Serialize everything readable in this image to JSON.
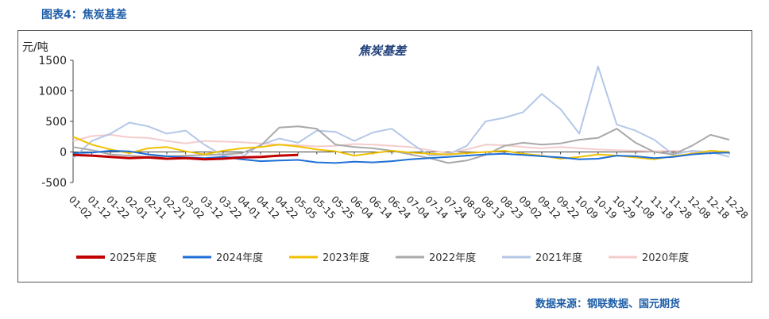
{
  "figure_title": "图表4：焦炭基差",
  "source": "数据来源：钢联数据、国元期货",
  "chart_data": {
    "type": "line",
    "title": "焦炭基差",
    "ylabel": "元/吨",
    "xlabel": "",
    "ylim": [
      -500,
      1500
    ],
    "yticks": [
      -500,
      0,
      500,
      1000,
      1500
    ],
    "x_tick_labels": [
      "01-02",
      "01-12",
      "01-22",
      "02-01",
      "02-11",
      "02-21",
      "03-02",
      "03-12",
      "03-22",
      "04-01",
      "04-12",
      "04-22",
      "05-05",
      "05-15",
      "05-25",
      "06-04",
      "06-14",
      "06-24",
      "07-04",
      "07-14",
      "07-24",
      "08-03",
      "08-13",
      "08-23",
      "09-02",
      "09-12",
      "09-22",
      "10-09",
      "10-19",
      "10-29",
      "11-08",
      "11-18",
      "11-28",
      "12-08",
      "12-18",
      "12-28"
    ],
    "grid": false,
    "legend_position": "bottom",
    "series": [
      {
        "name": "2025年度",
        "color": "#c00000",
        "values": [
          -50,
          -60,
          -80,
          -100,
          -90,
          -110,
          -100,
          -120,
          -110,
          -90,
          -80,
          -60,
          -50
        ]
      },
      {
        "name": "2024年度",
        "color": "#1f6fd6",
        "values": [
          -20,
          -10,
          20,
          10,
          -40,
          -70,
          -90,
          -100,
          -80,
          -120,
          -150,
          -140,
          -130,
          -170,
          -180,
          -160,
          -170,
          -150,
          -120,
          -100,
          -80,
          -60,
          -40,
          -30,
          -50,
          -70,
          -90,
          -120,
          -110,
          -60,
          -70,
          -100,
          -80,
          -40,
          -20,
          -10
        ]
      },
      {
        "name": "2023年度",
        "color": "#f0c000",
        "values": [
          250,
          120,
          40,
          -20,
          60,
          80,
          10,
          -40,
          20,
          60,
          80,
          120,
          90,
          40,
          10,
          -60,
          -20,
          20,
          -10,
          -30,
          -40,
          -20,
          0,
          20,
          -30,
          -60,
          -110,
          -80,
          -40,
          -60,
          -90,
          -120,
          -70,
          -30,
          20,
          0
        ]
      },
      {
        "name": "2022年度",
        "color": "#a9a9a9",
        "values": [
          80,
          30,
          -40,
          -60,
          -80,
          -70,
          -60,
          -50,
          -40,
          -20,
          100,
          400,
          420,
          380,
          120,
          80,
          60,
          20,
          -40,
          -100,
          -180,
          -140,
          -50,
          100,
          150,
          120,
          140,
          200,
          230,
          380,
          150,
          0,
          -40,
          100,
          280,
          200
        ]
      },
      {
        "name": "2021年度",
        "color": "#b4c7e7",
        "values": [
          -100,
          180,
          300,
          480,
          420,
          300,
          350,
          120,
          -60,
          -80,
          120,
          220,
          150,
          350,
          330,
          180,
          320,
          380,
          150,
          -60,
          -40,
          100,
          500,
          560,
          650,
          950,
          700,
          300,
          1400,
          450,
          350,
          200,
          -40,
          20,
          0,
          -80
        ]
      },
      {
        "name": "2020年度",
        "color": "#f4cccc",
        "values": [
          180,
          260,
          280,
          240,
          230,
          180,
          140,
          180,
          170,
          160,
          140,
          120,
          110,
          90,
          100,
          130,
          120,
          100,
          80,
          30,
          -20,
          40,
          120,
          110,
          80,
          60,
          80,
          60,
          40,
          30,
          20,
          10,
          20,
          0,
          -20,
          -10
        ]
      }
    ]
  }
}
